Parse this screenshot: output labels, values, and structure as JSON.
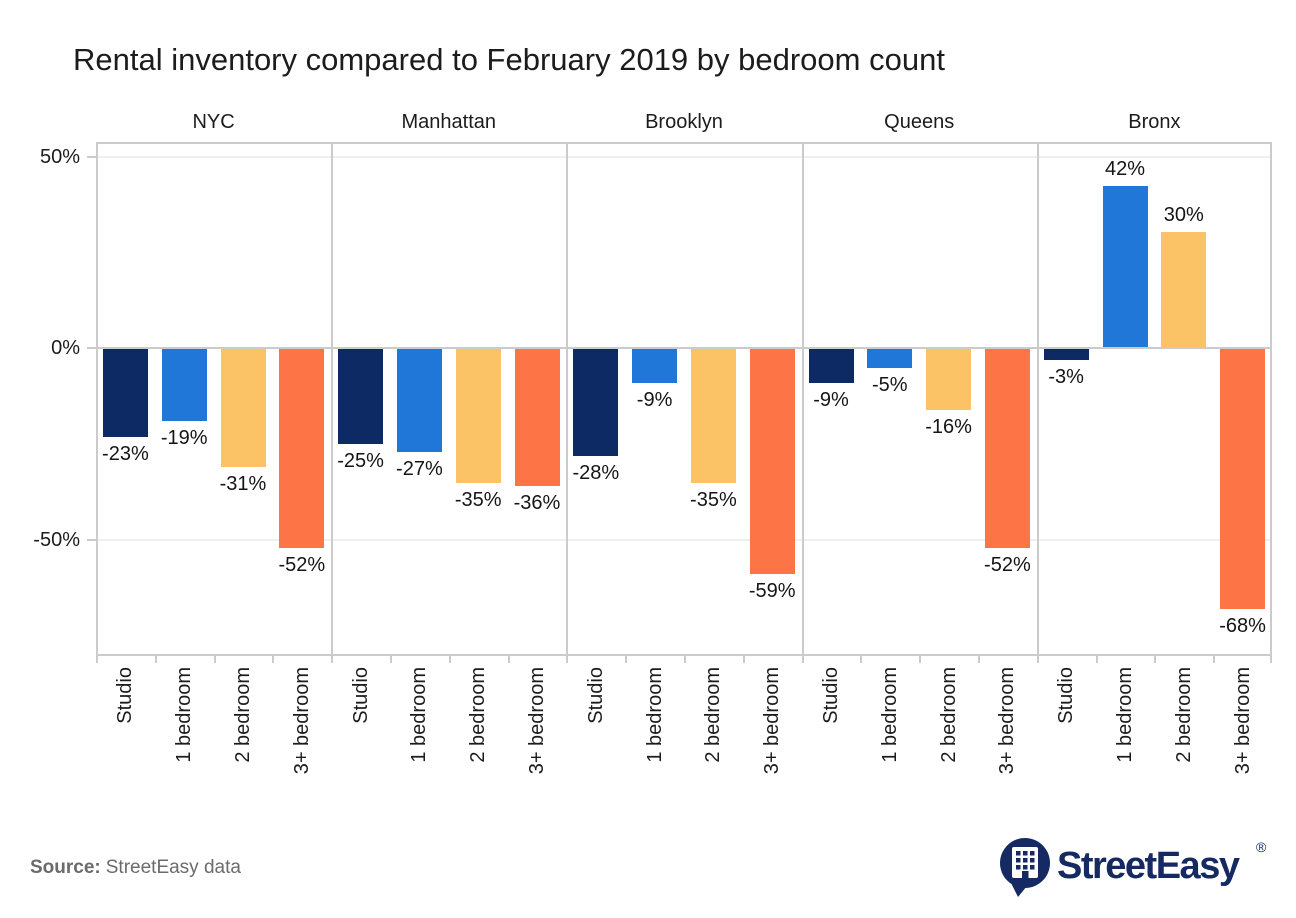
{
  "source": {
    "prefix": "Source:",
    "text": "StreetEasy data"
  },
  "logo": {
    "brand": "StreetEasy",
    "registered": "®",
    "color": "#152a62",
    "icon": "building-speech-bubble-icon"
  },
  "chart_data": {
    "type": "bar",
    "title": "Rental inventory compared to February 2019 by bedroom count",
    "facets": [
      "NYC",
      "Manhattan",
      "Brooklyn",
      "Queens",
      "Bronx"
    ],
    "categories": [
      "Studio",
      "1 bedroom",
      "2 bedroom",
      "3+ bedroom"
    ],
    "series": [
      {
        "name": "NYC",
        "values": [
          -23,
          -19,
          -31,
          -52
        ]
      },
      {
        "name": "Manhattan",
        "values": [
          -25,
          -27,
          -35,
          -36
        ]
      },
      {
        "name": "Brooklyn",
        "values": [
          -28,
          -9,
          -35,
          -59
        ]
      },
      {
        "name": "Queens",
        "values": [
          -9,
          -5,
          -16,
          -52
        ]
      },
      {
        "name": "Bronx",
        "values": [
          -3,
          42,
          30,
          -68
        ]
      }
    ],
    "bar_colors": [
      "#0d2a64",
      "#2077d8",
      "#fcc266",
      "#fd7446"
    ],
    "y_ticks": [
      {
        "value": 50,
        "label": "50%"
      },
      {
        "value": 0,
        "label": "0%"
      },
      {
        "value": -50,
        "label": "-50%"
      }
    ],
    "ylim": [
      -80.3,
      53.9
    ],
    "value_label_suffix": "%",
    "grid": "horizontal",
    "legend": "none"
  }
}
